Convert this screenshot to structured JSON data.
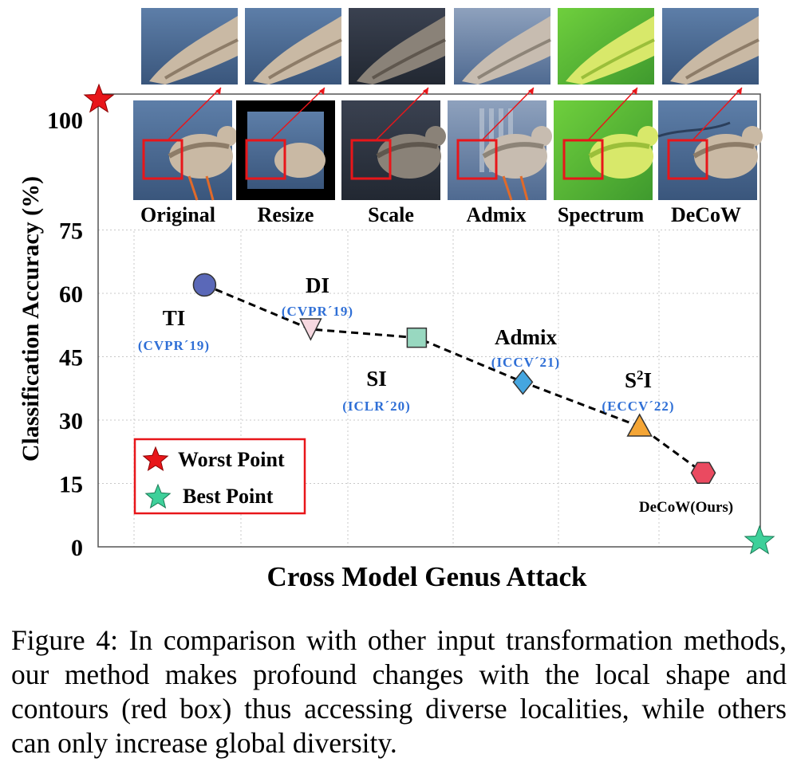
{
  "chart_data": {
    "type": "line",
    "xlabel": "Cross Model Genus Attack",
    "ylabel": "Classification Accuracy (%)",
    "yticks": [
      0,
      15,
      30,
      45,
      60,
      75,
      100
    ],
    "ytick_labels": [
      "0",
      "15",
      "30",
      "45",
      "60",
      "75",
      "100"
    ],
    "grid": true,
    "series": [
      {
        "name": "methods",
        "points": [
          {
            "key": "ti",
            "name": "TI",
            "venue": "(CVPR´19)",
            "x": 0.8,
            "y": 62,
            "marker": "circle",
            "color": "#5a68b8"
          },
          {
            "key": "di",
            "name": "DI",
            "venue": "(CVPR´19)",
            "x": 1.8,
            "y": 51.5,
            "marker": "triangle-down",
            "color": "#f6d8e0"
          },
          {
            "key": "si",
            "name": "SI",
            "venue": "(ICLR´20)",
            "x": 2.8,
            "y": 49.5,
            "marker": "square",
            "color": "#98d8c0"
          },
          {
            "key": "admix",
            "name": "Admix",
            "venue": "(ICCV´21)",
            "x": 3.8,
            "y": 39,
            "marker": "diamond",
            "color": "#45a6e0"
          },
          {
            "key": "s2i",
            "name": "S",
            "name_sup": "2",
            "name_tail": "I",
            "venue": "(ECCV´22)",
            "x": 4.9,
            "y": 28.5,
            "marker": "triangle-up",
            "color": "#f4a535"
          },
          {
            "key": "decow",
            "name": "DeCoW(Ours)",
            "venue": "",
            "x": 5.5,
            "y": 17.5,
            "marker": "hexagon",
            "color": "#ea4a60"
          }
        ]
      }
    ],
    "special_points": [
      {
        "key": "worst",
        "label": "Worst Point",
        "x": 0,
        "y": 105,
        "color": "#e8161a"
      },
      {
        "key": "best",
        "label": "Best Point",
        "x": 6.2,
        "y": 0,
        "color": "#3ed09a"
      }
    ],
    "legend": {
      "position": "bottom-left",
      "entries": [
        "Worst Point",
        "Best Point"
      ]
    },
    "image_labels": [
      "Original",
      "Resize",
      "Scale",
      "Admix",
      "Spectrum",
      "DeCoW"
    ],
    "colors": {
      "highlight_box": "#e8161a",
      "venue_text": "#2f6fd6",
      "grid": "#c8c8c8"
    }
  },
  "caption": "Figure 4: In comparison with other input transformation methods, our method makes profound changes with the local shape and contours (red box) thus accessing diverse localities, while others can only increase global diversity."
}
